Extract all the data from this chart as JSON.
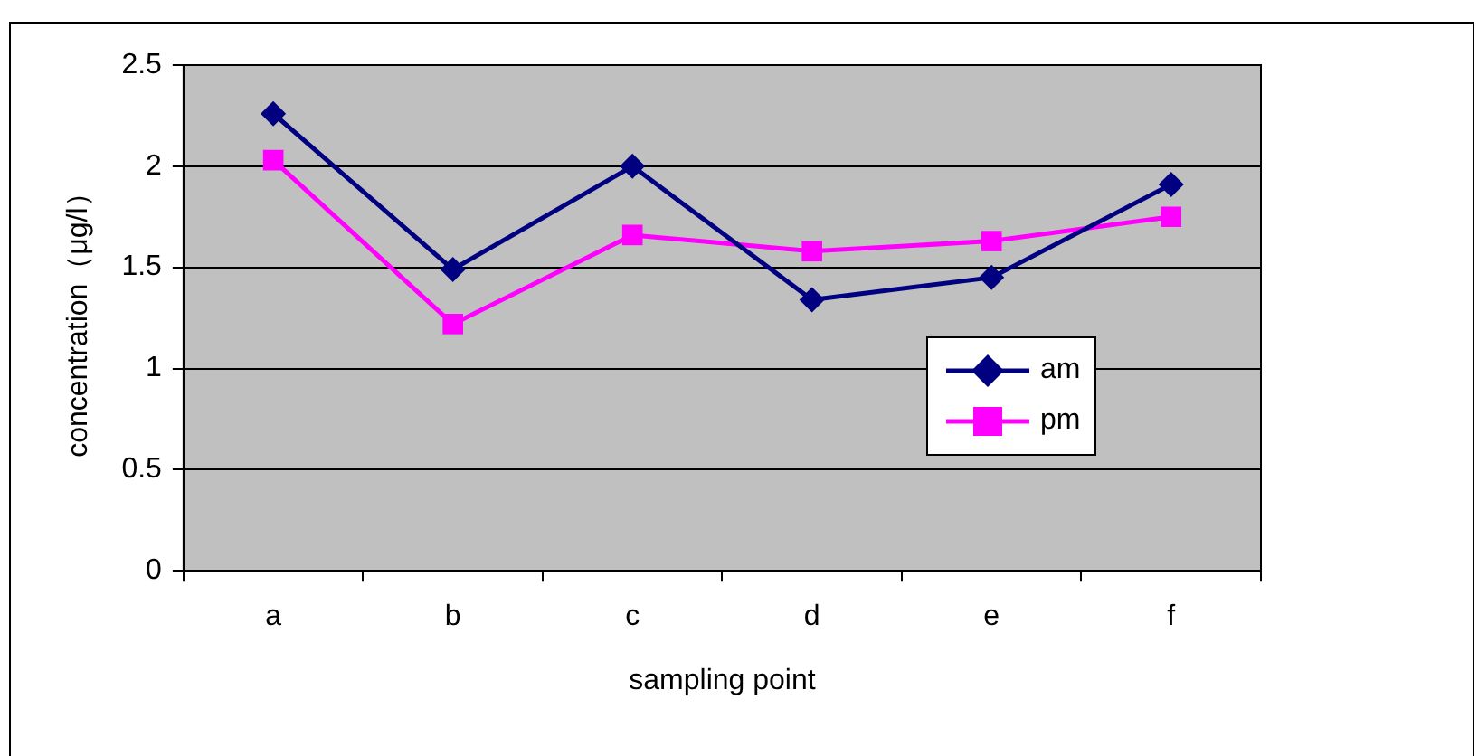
{
  "chart_data": {
    "type": "line",
    "xlabel": "sampling point",
    "ylabel": "concentration（μg/l）",
    "categories": [
      "a",
      "b",
      "c",
      "d",
      "e",
      "f"
    ],
    "series": [
      {
        "name": "am",
        "color": "#000080",
        "marker": "diamond",
        "values": [
          2.26,
          1.49,
          2.0,
          1.34,
          1.45,
          1.91
        ]
      },
      {
        "name": "pm",
        "color": "#ff00ff",
        "marker": "square",
        "values": [
          2.03,
          1.22,
          1.66,
          1.58,
          1.63,
          1.75
        ]
      }
    ],
    "ylim": [
      0,
      2.5
    ],
    "yticks": [
      0,
      0.5,
      1,
      1.5,
      2,
      2.5
    ],
    "grid": "y",
    "legend": "right"
  }
}
